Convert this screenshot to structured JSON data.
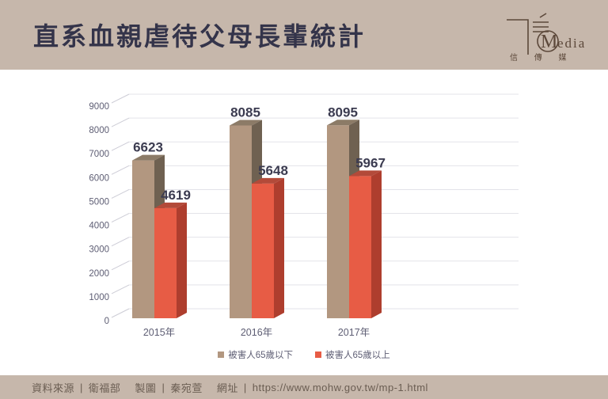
{
  "header": {
    "title": "直系血親虐待父母長輩統計",
    "logo": {
      "m_initial": "M",
      "brand_rest": "edia",
      "cjk": "信  傳  媒"
    }
  },
  "chart_data": {
    "type": "bar",
    "style": "3d-clustered-column",
    "title": "直系血親虐待父母長輩統計",
    "categories": [
      "2015年",
      "2016年",
      "2017年"
    ],
    "series": [
      {
        "name": "被害人65歲以下",
        "values": [
          6623,
          8085,
          8095
        ],
        "color": "#b29780"
      },
      {
        "name": "被害人65歲以上",
        "values": [
          4619,
          5648,
          5967
        ],
        "color": "#e75c45"
      }
    ],
    "ylim": [
      0,
      9000
    ],
    "ytick_interval": 1000,
    "grid": true,
    "legend_position": "bottom"
  },
  "footer": {
    "source_label": "資料來源",
    "source_value": "衛福部",
    "credit_label": "製圖",
    "credit_value": "秦宛萱",
    "url_label": "網址",
    "url_value": "https://www.mohw.gov.tw/mp-1.html",
    "separator": "|"
  },
  "colors": {
    "band_bg": "#c6b7ab",
    "title_text": "#34344a",
    "content_bg": "#ffffff",
    "grid_line": "#e3e3e9",
    "tick_line": "#cdccd6",
    "axis_text": "#5e5e74",
    "data_label": "#3b3b50",
    "footer_text": "#6a5d52",
    "logo": "#5c483a",
    "series1_front": "#b29780",
    "series1_top": "#8c7b67",
    "series1_side": "#6f6151",
    "series2_front": "#e75c45",
    "series2_top": "#b34a39",
    "series2_side": "#ae3e2e"
  }
}
